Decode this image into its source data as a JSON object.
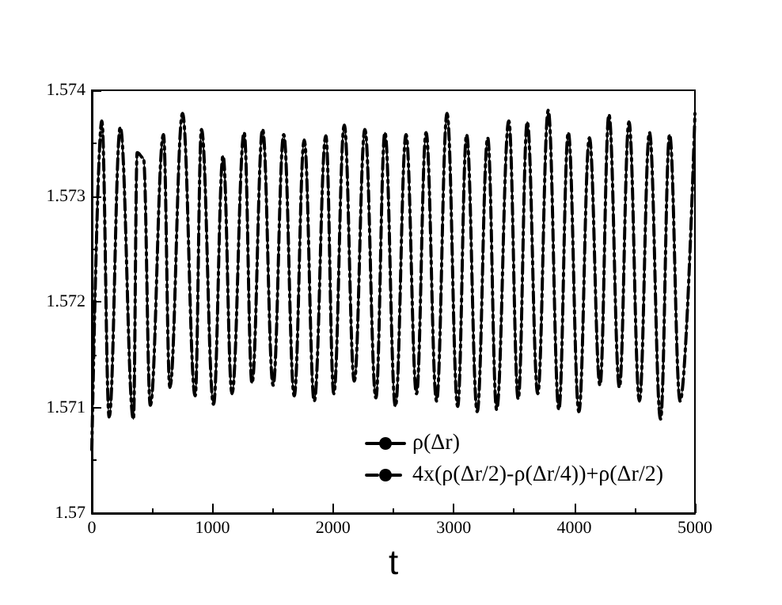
{
  "chart_data": {
    "type": "line",
    "xlabel": "t",
    "x": [
      0,
      83,
      144,
      236,
      345,
      376,
      428,
      485,
      594,
      647,
      752,
      857,
      909,
      1009,
      1088,
      1162,
      1263,
      1328,
      1416,
      1503,
      1591,
      1678,
      1761,
      1844,
      1940,
      2006,
      2093,
      2176,
      2264,
      2355,
      2430,
      2517,
      2605,
      2692,
      2771,
      2858,
      2945,
      3033,
      3107,
      3195,
      3282,
      3356,
      3457,
      3535,
      3610,
      3697,
      3784,
      3872,
      3950,
      4038,
      4125,
      4213,
      4287,
      4374,
      4453,
      4540,
      4623,
      4715,
      4790,
      4877,
      5000
    ],
    "series": [
      {
        "name": "ρ(Δr)",
        "color": "#000000",
        "line_style": "solid",
        "values": [
          1.5706,
          1.57371,
          1.57091,
          1.57365,
          1.57089,
          1.57341,
          1.57336,
          1.57102,
          1.57358,
          1.57119,
          1.57378,
          1.57111,
          1.57363,
          1.57103,
          1.57338,
          1.57113,
          1.5736,
          1.57123,
          1.57363,
          1.57121,
          1.57358,
          1.57111,
          1.57353,
          1.57106,
          1.57357,
          1.57113,
          1.57367,
          1.57125,
          1.57363,
          1.57109,
          1.5736,
          1.57101,
          1.57358,
          1.57113,
          1.5736,
          1.57106,
          1.57378,
          1.57101,
          1.57358,
          1.57096,
          1.57355,
          1.57098,
          1.57371,
          1.57108,
          1.5737,
          1.57113,
          1.57381,
          1.57098,
          1.5736,
          1.57096,
          1.57355,
          1.57121,
          1.57377,
          1.57119,
          1.5737,
          1.57106,
          1.5736,
          1.57089,
          1.57358,
          1.57106,
          1.57378
        ]
      },
      {
        "name": "4x(ρ(Δr/2)-ρ(Δr/4))+ρ(Δr/2)",
        "color": "#000000",
        "line_style": "dashed",
        "values": [
          1.5706,
          1.57371,
          1.57091,
          1.57365,
          1.57089,
          1.57341,
          1.57336,
          1.57102,
          1.57358,
          1.57119,
          1.57378,
          1.57111,
          1.57363,
          1.57103,
          1.57338,
          1.57113,
          1.5736,
          1.57123,
          1.57363,
          1.57121,
          1.57358,
          1.57111,
          1.57353,
          1.57106,
          1.57357,
          1.57113,
          1.57367,
          1.57125,
          1.57363,
          1.57109,
          1.5736,
          1.57101,
          1.57358,
          1.57113,
          1.5736,
          1.57106,
          1.57378,
          1.57101,
          1.57358,
          1.57096,
          1.57355,
          1.57098,
          1.57371,
          1.57108,
          1.5737,
          1.57113,
          1.57381,
          1.57098,
          1.5736,
          1.57096,
          1.57355,
          1.57121,
          1.57377,
          1.57119,
          1.5737,
          1.57106,
          1.5736,
          1.57089,
          1.57358,
          1.57106,
          1.57378
        ]
      }
    ],
    "xlim": [
      0,
      5000
    ],
    "xticks": [
      0,
      1000,
      2000,
      3000,
      4000,
      5000
    ],
    "ylim": [
      1.57,
      1.574
    ],
    "yticks": [
      1.57,
      1.571,
      1.572,
      1.573,
      1.574
    ],
    "grid": false,
    "legend": "bottom right",
    "marker": "none"
  }
}
